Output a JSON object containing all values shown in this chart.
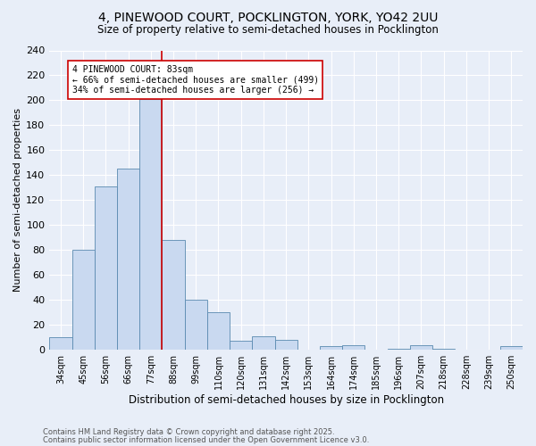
{
  "title": "4, PINEWOOD COURT, POCKLINGTON, YORK, YO42 2UU",
  "subtitle": "Size of property relative to semi-detached houses in Pocklington",
  "xlabel": "Distribution of semi-detached houses by size in Pocklington",
  "ylabel": "Number of semi-detached properties",
  "footnote1": "Contains HM Land Registry data © Crown copyright and database right 2025.",
  "footnote2": "Contains public sector information licensed under the Open Government Licence v3.0.",
  "bar_labels": [
    "34sqm",
    "45sqm",
    "56sqm",
    "66sqm",
    "77sqm",
    "88sqm",
    "99sqm",
    "110sqm",
    "120sqm",
    "131sqm",
    "142sqm",
    "153sqm",
    "164sqm",
    "174sqm",
    "185sqm",
    "196sqm",
    "207sqm",
    "218sqm",
    "228sqm",
    "239sqm",
    "250sqm"
  ],
  "bar_values": [
    10,
    80,
    131,
    145,
    201,
    88,
    40,
    30,
    7,
    11,
    8,
    0,
    3,
    4,
    0,
    1,
    4,
    1,
    0,
    0,
    3
  ],
  "bar_color": "#c9d9f0",
  "bar_edge_color": "#5a8ab0",
  "background_color": "#e8eef8",
  "grid_color": "#ffffff",
  "vline_color": "#cc0000",
  "vline_x_index": 4.5,
  "annotation_title": "4 PINEWOOD COURT: 83sqm",
  "annotation_line1": "← 66% of semi-detached houses are smaller (499)",
  "annotation_line2": "34% of semi-detached houses are larger (256) →",
  "annotation_box_color": "#ffffff",
  "annotation_box_edge": "#cc0000",
  "ylim": [
    0,
    240
  ],
  "yticks": [
    0,
    20,
    40,
    60,
    80,
    100,
    120,
    140,
    160,
    180,
    200,
    220,
    240
  ]
}
